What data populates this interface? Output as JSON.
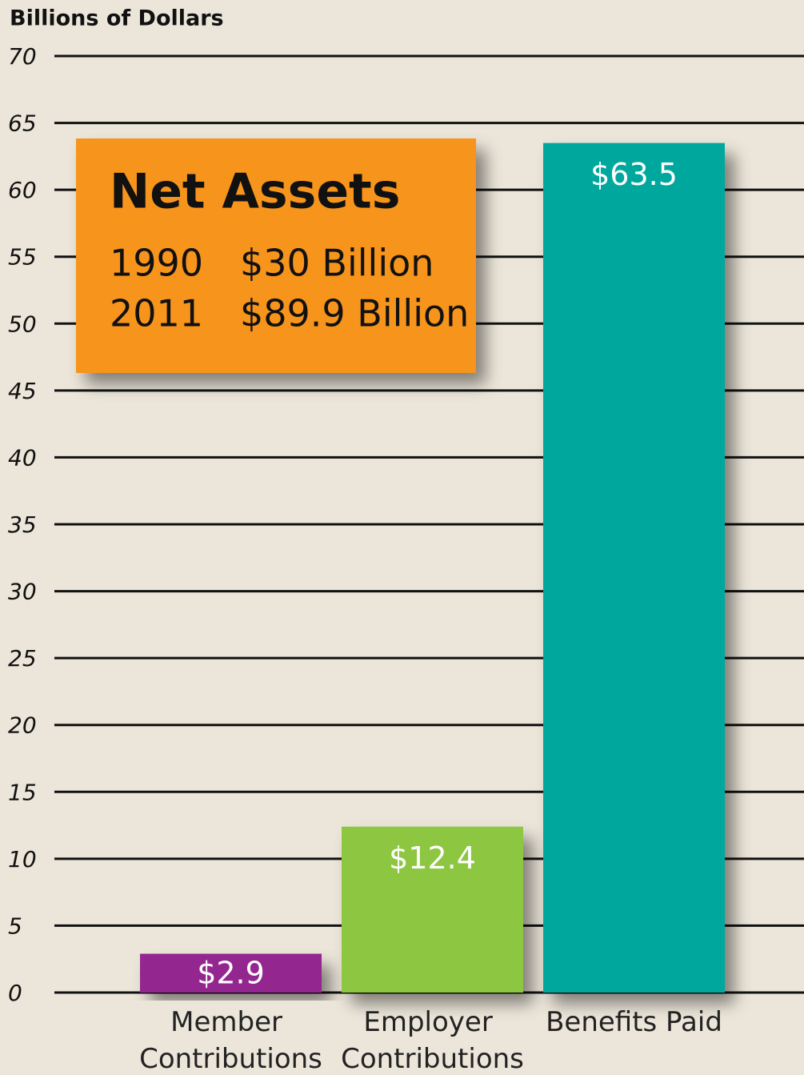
{
  "chart_data": {
    "type": "bar",
    "y_axis_label": "Billions of Dollars",
    "categories": [
      "Member Contributions",
      "Employer Contributions",
      "Benefits Paid"
    ],
    "values": [
      2.9,
      12.4,
      63.5
    ],
    "value_labels": [
      "$2.9",
      "$12.4",
      "$63.5"
    ],
    "colors": [
      "#93278f",
      "#8dc63f",
      "#00a79d"
    ],
    "ylim": [
      0,
      70
    ],
    "yticks": [
      0,
      5,
      10,
      15,
      20,
      25,
      30,
      35,
      40,
      45,
      50,
      55,
      60,
      65,
      70
    ],
    "grid": true,
    "annotation": {
      "title": "Net Assets",
      "rows": [
        [
          "1990",
          "$30 Billion"
        ],
        [
          "2011",
          "$89.9 Billion"
        ]
      ],
      "color": "#f7941d"
    }
  }
}
